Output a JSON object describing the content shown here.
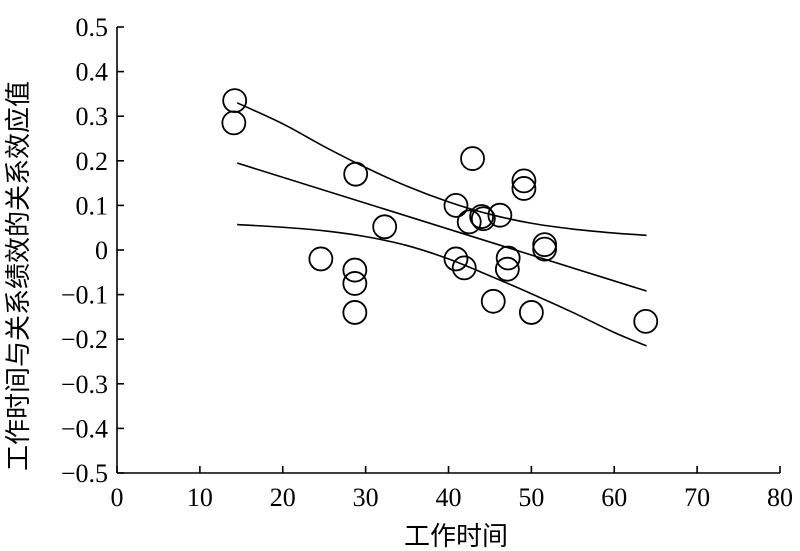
{
  "chart_data": {
    "type": "scatter",
    "title": "",
    "xlabel": "工作时间",
    "ylabel": "工作时间与关系绩效的关系效应值",
    "xlim": [
      0,
      80
    ],
    "ylim": [
      -0.5,
      0.5
    ],
    "grid": false,
    "x_ticks": [
      "0",
      "10",
      "20",
      "30",
      "40",
      "50",
      "60",
      "70",
      "80"
    ],
    "y_ticks": [
      "0.5",
      "0.4",
      "0.3",
      "0.2",
      "0.1",
      "0",
      "−0.1",
      "−0.2",
      "−0.3",
      "−0.4",
      "−0.5"
    ],
    "points": [
      {
        "x": 14.2,
        "y": 0.335
      },
      {
        "x": 14.1,
        "y": 0.285
      },
      {
        "x": 24.6,
        "y": -0.02
      },
      {
        "x": 28.8,
        "y": 0.17
      },
      {
        "x": 28.7,
        "y": -0.045
      },
      {
        "x": 28.7,
        "y": -0.075
      },
      {
        "x": 28.7,
        "y": -0.14
      },
      {
        "x": 32.3,
        "y": 0.052
      },
      {
        "x": 40.9,
        "y": 0.1
      },
      {
        "x": 40.9,
        "y": -0.02
      },
      {
        "x": 41.9,
        "y": -0.04
      },
      {
        "x": 42.5,
        "y": 0.063
      },
      {
        "x": 42.9,
        "y": 0.205
      },
      {
        "x": 44.0,
        "y": 0.075
      },
      {
        "x": 44.2,
        "y": 0.07
      },
      {
        "x": 45.4,
        "y": -0.115
      },
      {
        "x": 46.2,
        "y": 0.078
      },
      {
        "x": 47.2,
        "y": -0.018
      },
      {
        "x": 47.1,
        "y": -0.043
      },
      {
        "x": 49.1,
        "y": 0.155
      },
      {
        "x": 49.1,
        "y": 0.138
      },
      {
        "x": 50.0,
        "y": -0.14
      },
      {
        "x": 51.6,
        "y": 0.012
      },
      {
        "x": 51.6,
        "y": 0.002
      },
      {
        "x": 63.8,
        "y": -0.16
      }
    ],
    "lines": [
      {
        "name": "regression",
        "x": [
          14.5,
          63.9
        ],
        "y": [
          0.195,
          -0.092
        ]
      },
      {
        "name": "upper-ci",
        "x": [
          14.5,
          20,
          25,
          30,
          35,
          40,
          45,
          50,
          55,
          60,
          63.9
        ],
        "y": [
          0.33,
          0.283,
          0.232,
          0.185,
          0.143,
          0.108,
          0.08,
          0.06,
          0.047,
          0.038,
          0.033
        ]
      },
      {
        "name": "lower-ci",
        "x": [
          14.5,
          20,
          25,
          30,
          35,
          40,
          45,
          50,
          55,
          60,
          63.9
        ],
        "y": [
          0.057,
          0.051,
          0.043,
          0.03,
          0.01,
          -0.02,
          -0.058,
          -0.098,
          -0.14,
          -0.185,
          -0.215
        ]
      }
    ]
  }
}
